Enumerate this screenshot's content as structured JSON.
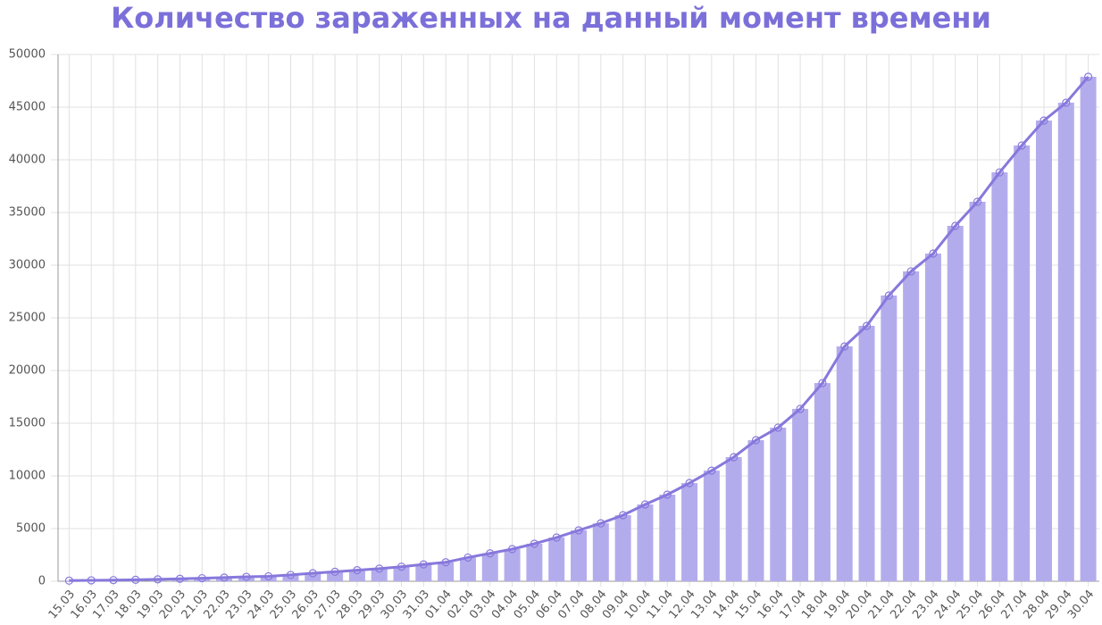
{
  "chart_data": {
    "type": "bar_line",
    "title": "Количество зараженных на данный момент времени",
    "categories": [
      "15.03",
      "16.03",
      "17.03",
      "18.03",
      "19.03",
      "20.03",
      "21.03",
      "22.03",
      "23.03",
      "24.03",
      "25.03",
      "26.03",
      "27.03",
      "28.03",
      "29.03",
      "30.03",
      "31.03",
      "01.04",
      "02.04",
      "03.04",
      "04.04",
      "05.04",
      "06.04",
      "07.04",
      "08.04",
      "09.04",
      "10.04",
      "11.04",
      "12.04",
      "13.04",
      "14.04",
      "15.04",
      "16.04",
      "17.04",
      "18.04",
      "19.04",
      "20.04",
      "21.04",
      "22.04",
      "23.04",
      "24.04",
      "25.04",
      "26.04",
      "27.04",
      "28.04",
      "29.04",
      "30.04"
    ],
    "values": [
      60,
      90,
      110,
      140,
      180,
      230,
      290,
      350,
      420,
      470,
      600,
      760,
      900,
      1050,
      1200,
      1380,
      1600,
      1800,
      2250,
      2650,
      3050,
      3560,
      4150,
      4830,
      5500,
      6270,
      7290,
      8220,
      9320,
      10500,
      11780,
      13390,
      14580,
      16360,
      18810,
      22290,
      24240,
      27120,
      29410,
      31100,
      33730,
      36020,
      38810,
      41360,
      43730,
      45420,
      47880
    ],
    "bar_color": "#b3acec",
    "line_color": "#8778dc",
    "ylim": [
      0,
      50000
    ],
    "yticks": [
      0,
      5000,
      10000,
      15000,
      20000,
      25000,
      30000,
      35000,
      40000,
      45000,
      50000
    ],
    "grid": true
  }
}
